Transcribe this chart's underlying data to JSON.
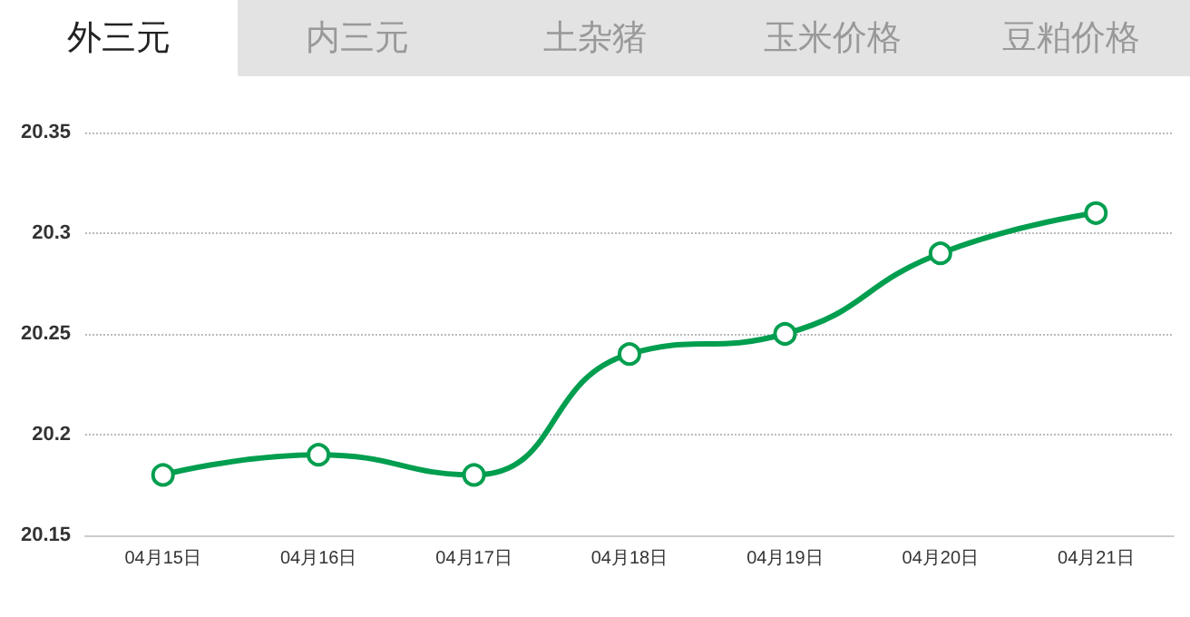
{
  "chart_data": {
    "type": "line",
    "annotations": [
      "外三元",
      "内三元",
      "土杂猪",
      "玉米价格",
      "豆粕价格"
    ],
    "categories": [
      "04月15日",
      "04月16日",
      "04月17日",
      "04月18日",
      "04月19日",
      "04月20日",
      "04月21日"
    ],
    "values": [
      20.18,
      20.19,
      20.18,
      20.24,
      20.25,
      20.29,
      20.31
    ],
    "color": "#009e4f",
    "ylim": [
      20.15,
      20.35
    ],
    "yticks": [
      20.15,
      20.2,
      20.25,
      20.3,
      20.35
    ],
    "grid": "y",
    "marker": "circle",
    "line_style": "solid"
  }
}
